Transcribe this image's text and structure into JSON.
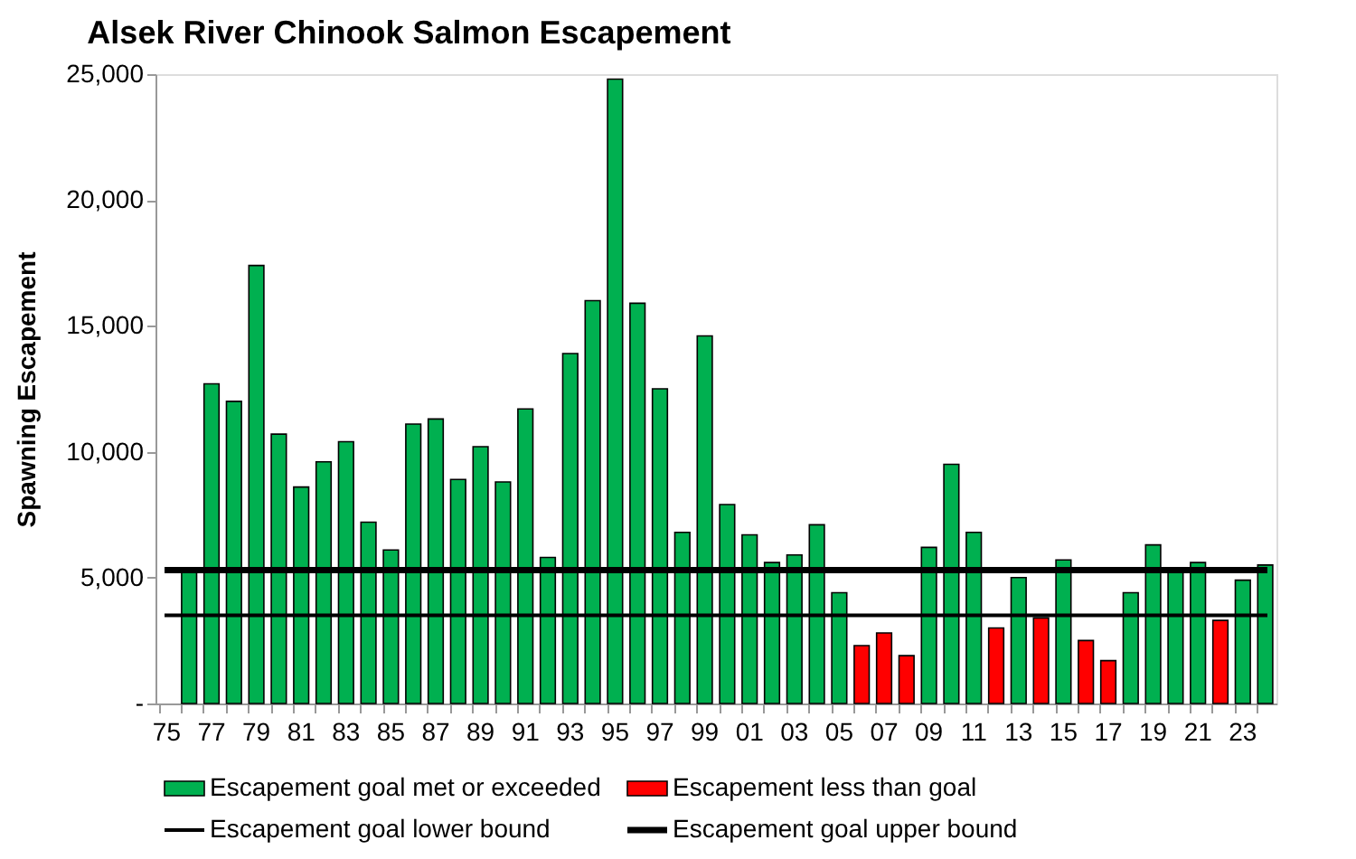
{
  "chart_data": {
    "type": "bar",
    "title": "Alsek River Chinook Salmon Escapement",
    "ylabel": "Spawning Escapement",
    "categories": [
      "75",
      null,
      "77",
      null,
      "79",
      null,
      "81",
      null,
      "83",
      null,
      "85",
      null,
      "87",
      null,
      "89",
      null,
      "91",
      null,
      "93",
      null,
      "95",
      null,
      "97",
      null,
      "99",
      null,
      "01",
      null,
      "03",
      null,
      "05",
      null,
      "07",
      null,
      "09",
      null,
      "11",
      null,
      "13",
      null,
      "15",
      null,
      "17",
      null,
      "19",
      null,
      "21",
      null,
      "23",
      null
    ],
    "series": [
      {
        "name": "Escapement goal met or exceeded",
        "color": "#00b050",
        "values": [
          null,
          5300,
          12700,
          12000,
          17400,
          10700,
          8600,
          9600,
          10400,
          7200,
          6100,
          11100,
          11300,
          8900,
          10200,
          8800,
          11700,
          5800,
          13900,
          16000,
          24800,
          15900,
          12500,
          6800,
          14600,
          7900,
          6700,
          5600,
          5900,
          7100,
          4400,
          null,
          null,
          null,
          6200,
          9500,
          6800,
          null,
          5000,
          null,
          5700,
          null,
          null,
          4400,
          6300,
          5300,
          5600,
          null,
          4900,
          5500
        ]
      },
      {
        "name": "Escapement less than goal",
        "color": "#ff0000",
        "values": [
          null,
          null,
          null,
          null,
          null,
          null,
          null,
          null,
          null,
          null,
          null,
          null,
          null,
          null,
          null,
          null,
          null,
          null,
          null,
          null,
          null,
          null,
          null,
          null,
          null,
          null,
          null,
          null,
          null,
          null,
          null,
          2300,
          2800,
          1900,
          null,
          null,
          null,
          3000,
          null,
          3400,
          null,
          2500,
          1700,
          null,
          null,
          null,
          null,
          3300,
          null,
          null
        ]
      }
    ],
    "ref_lines": [
      {
        "axis": "y",
        "value": 3500,
        "label": "Escapement goal lower bound",
        "color": "#000000",
        "line_style": "solid"
      },
      {
        "axis": "y",
        "value": 5300,
        "label": "Escapement goal upper bound",
        "color": "#000000",
        "line_style": "solid"
      }
    ],
    "ylim": [
      0,
      25000
    ],
    "yticks": [
      {
        "value": 0,
        "label": "-"
      },
      {
        "value": 5000,
        "label": "5,000"
      },
      {
        "value": 10000,
        "label": "10,000"
      },
      {
        "value": 15000,
        "label": "15,000"
      },
      {
        "value": 20000,
        "label": "20,000"
      },
      {
        "value": 25000,
        "label": "25,000"
      }
    ],
    "grid": false,
    "legend": "bottom"
  }
}
